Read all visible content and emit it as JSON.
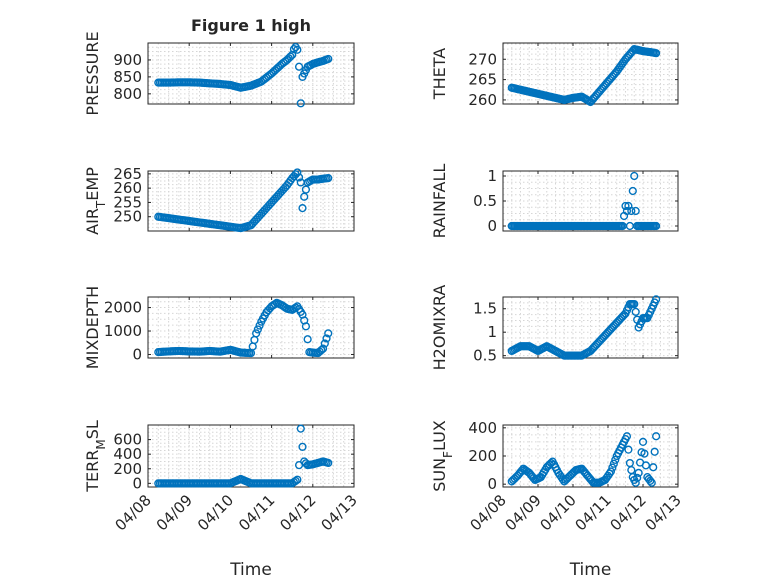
{
  "figure": {
    "title": "Figure 1 high",
    "marker_color": "#0072BD"
  },
  "chart_data": [
    {
      "type": "scatter",
      "title": "Figure 1 high",
      "ylabel": "PRESSURE",
      "xlabel": "",
      "xlim": [
        "04/08",
        "04/13"
      ],
      "ylim": [
        770,
        950
      ],
      "yticks": [
        800,
        850,
        900
      ],
      "xticks": [
        "04/08",
        "04/09",
        "04/10",
        "04/11",
        "04/12",
        "04/13"
      ],
      "grid": true,
      "x": [
        "04/08 06:00",
        "04/08 12:00",
        "04/08 18:00",
        "04/09 00:00",
        "04/09 06:00",
        "04/09 12:00",
        "04/09 18:00",
        "04/10 00:00",
        "04/10 06:00",
        "04/10 12:00",
        "04/10 18:00",
        "04/11 00:00",
        "04/11 06:00",
        "04/11 09:00",
        "04/11 12:00",
        "04/11 13:00",
        "04/11 14:00",
        "04/11 15:00",
        "04/11 16:00",
        "04/11 17:00",
        "04/11 18:00",
        "04/11 21:00",
        "04/12 00:00",
        "04/12 03:00",
        "04/12 06:00",
        "04/12 09:00"
      ],
      "y": [
        833,
        833,
        834,
        834,
        833,
        831,
        829,
        826,
        818,
        824,
        836,
        860,
        888,
        900,
        915,
        932,
        938,
        930,
        880,
        772,
        850,
        880,
        888,
        893,
        897,
        903
      ]
    },
    {
      "type": "scatter",
      "title": "",
      "ylabel": "THETA",
      "xlabel": "",
      "xlim": [
        "04/08",
        "04/13"
      ],
      "ylim": [
        259,
        274
      ],
      "yticks": [
        260,
        265,
        270
      ],
      "xticks": [
        "04/08",
        "04/09",
        "04/10",
        "04/11",
        "04/12",
        "04/13"
      ],
      "grid": true,
      "x": [
        "04/08 06:00",
        "04/08 12:00",
        "04/08 18:00",
        "04/09 00:00",
        "04/09 06:00",
        "04/09 12:00",
        "04/09 18:00",
        "04/10 00:00",
        "04/10 06:00",
        "04/10 12:00",
        "04/10 18:00",
        "04/11 00:00",
        "04/11 06:00",
        "04/11 12:00",
        "04/11 18:00",
        "04/12 00:00",
        "04/12 06:00",
        "04/12 09:00"
      ],
      "y": [
        263,
        262.5,
        262,
        261.5,
        261,
        260.5,
        260,
        260.5,
        260.8,
        259.5,
        262,
        264.5,
        267,
        270,
        272.5,
        272,
        271.7,
        271.5
      ]
    },
    {
      "type": "scatter",
      "title": "",
      "ylabel": "AIR_TEMP",
      "xlabel": "",
      "xlim": [
        "04/08",
        "04/13"
      ],
      "ylim": [
        245,
        266
      ],
      "yticks": [
        250,
        255,
        260,
        265
      ],
      "xticks": [
        "04/08",
        "04/09",
        "04/10",
        "04/11",
        "04/12",
        "04/13"
      ],
      "grid": true,
      "x": [
        "04/08 06:00",
        "04/08 12:00",
        "04/08 18:00",
        "04/09 00:00",
        "04/09 06:00",
        "04/09 12:00",
        "04/09 18:00",
        "04/10 00:00",
        "04/10 06:00",
        "04/10 12:00",
        "04/10 18:00",
        "04/11 00:00",
        "04/11 06:00",
        "04/11 09:00",
        "04/11 12:00",
        "04/11 15:00",
        "04/11 17:00",
        "04/11 18:00",
        "04/11 19:00",
        "04/11 21:00",
        "04/12 00:00",
        "04/12 03:00",
        "04/12 06:00",
        "04/12 09:00"
      ],
      "y": [
        250,
        249.5,
        249,
        248.5,
        248,
        247.5,
        247,
        246.5,
        246,
        247,
        251,
        255,
        259,
        261,
        263.5,
        265.5,
        262,
        253,
        257,
        262,
        263,
        263,
        263.3,
        263.5
      ]
    },
    {
      "type": "scatter",
      "title": "",
      "ylabel": "RAINFALL",
      "xlabel": "",
      "xlim": [
        "04/08",
        "04/13"
      ],
      "ylim": [
        -0.1,
        1.1
      ],
      "yticks": [
        0,
        0.5,
        1
      ],
      "xticks": [
        "04/08",
        "04/09",
        "04/10",
        "04/11",
        "04/12",
        "04/13"
      ],
      "grid": true,
      "x": [
        "04/08 06:00",
        "04/08 12:00",
        "04/08 18:00",
        "04/09 00:00",
        "04/09 06:00",
        "04/09 12:00",
        "04/09 18:00",
        "04/10 00:00",
        "04/10 06:00",
        "04/10 12:00",
        "04/10 18:00",
        "04/11 00:00",
        "04/11 06:00",
        "04/11 10:00",
        "04/11 11:00",
        "04/11 12:00",
        "04/11 13:00",
        "04/11 14:00",
        "04/11 15:00",
        "04/11 16:00",
        "04/11 17:00",
        "04/11 18:00",
        "04/11 19:00",
        "04/11 20:00",
        "04/12 00:00",
        "04/12 06:00",
        "04/12 09:00"
      ],
      "y": [
        0,
        0,
        0,
        0,
        0,
        0,
        0,
        0,
        0,
        0,
        0,
        0,
        0,
        0,
        0.2,
        0.4,
        0.3,
        0.4,
        0,
        0.3,
        0.7,
        1.0,
        0.3,
        0,
        0,
        0,
        0
      ]
    },
    {
      "type": "scatter",
      "title": "",
      "ylabel": "MIXDEPTH",
      "xlabel": "",
      "xlim": [
        "04/08",
        "04/13"
      ],
      "ylim": [
        -150,
        2450
      ],
      "yticks": [
        0,
        1000,
        2000
      ],
      "xticks": [
        "04/08",
        "04/09",
        "04/10",
        "04/11",
        "04/12",
        "04/13"
      ],
      "grid": true,
      "x": [
        "04/08 06:00",
        "04/08 12:00",
        "04/08 18:00",
        "04/09 00:00",
        "04/09 06:00",
        "04/09 12:00",
        "04/09 18:00",
        "04/10 00:00",
        "04/10 06:00",
        "04/10 12:00",
        "04/10 15:00",
        "04/10 18:00",
        "04/10 21:00",
        "04/11 00:00",
        "04/11 03:00",
        "04/11 06:00",
        "04/11 09:00",
        "04/11 12:00",
        "04/11 15:00",
        "04/11 18:00",
        "04/11 20:00",
        "04/11 22:00",
        "04/12 00:00",
        "04/12 03:00",
        "04/12 06:00",
        "04/12 09:00"
      ],
      "y": [
        100,
        130,
        150,
        130,
        120,
        150,
        120,
        200,
        80,
        60,
        900,
        1400,
        1800,
        2050,
        2200,
        2100,
        1950,
        1900,
        2050,
        1700,
        1200,
        100,
        80,
        60,
        250,
        900
      ]
    },
    {
      "type": "scatter",
      "title": "",
      "ylabel": "H2OMIXRA",
      "xlabel": "",
      "xlim": [
        "04/08",
        "04/13"
      ],
      "ylim": [
        0.45,
        1.75
      ],
      "yticks": [
        0.5,
        1,
        1.5
      ],
      "xticks": [
        "04/08",
        "04/09",
        "04/10",
        "04/11",
        "04/12",
        "04/13"
      ],
      "grid": true,
      "x": [
        "04/08 06:00",
        "04/08 12:00",
        "04/08 18:00",
        "04/09 00:00",
        "04/09 06:00",
        "04/09 12:00",
        "04/09 18:00",
        "04/10 00:00",
        "04/10 06:00",
        "04/10 12:00",
        "04/10 18:00",
        "04/11 00:00",
        "04/11 06:00",
        "04/11 12:00",
        "04/11 15:00",
        "04/11 18:00",
        "04/11 21:00",
        "04/12 00:00",
        "04/12 03:00",
        "04/12 06:00",
        "04/12 09:00"
      ],
      "y": [
        0.6,
        0.7,
        0.7,
        0.6,
        0.7,
        0.6,
        0.5,
        0.5,
        0.5,
        0.6,
        0.8,
        1.0,
        1.2,
        1.4,
        1.6,
        1.6,
        1.1,
        1.3,
        1.3,
        1.5,
        1.7
      ]
    },
    {
      "type": "scatter",
      "title": "",
      "ylabel": "TERR_MSL",
      "xlabel": "Time",
      "xlim": [
        "04/08",
        "04/13"
      ],
      "ylim": [
        -50,
        800
      ],
      "yticks": [
        0,
        200,
        400,
        600
      ],
      "xticks": [
        "04/08",
        "04/09",
        "04/10",
        "04/11",
        "04/12",
        "04/13"
      ],
      "grid": true,
      "x": [
        "04/08 06:00",
        "04/08 12:00",
        "04/08 18:00",
        "04/09 00:00",
        "04/09 06:00",
        "04/09 12:00",
        "04/09 18:00",
        "04/10 00:00",
        "04/10 06:00",
        "04/10 12:00",
        "04/10 18:00",
        "04/11 00:00",
        "04/11 06:00",
        "04/11 12:00",
        "04/11 15:00",
        "04/11 16:00",
        "04/11 17:00",
        "04/11 18:00",
        "04/11 19:00",
        "04/11 21:00",
        "04/12 00:00",
        "04/12 03:00",
        "04/12 06:00",
        "04/12 09:00"
      ],
      "y": [
        0,
        0,
        0,
        0,
        0,
        0,
        0,
        0,
        60,
        0,
        0,
        0,
        0,
        0,
        50,
        250,
        750,
        500,
        300,
        250,
        260,
        280,
        300,
        280
      ]
    },
    {
      "type": "scatter",
      "title": "",
      "ylabel": "SUN_FLUX",
      "xlabel": "Time",
      "xlim": [
        "04/08",
        "04/13"
      ],
      "ylim": [
        -20,
        420
      ],
      "yticks": [
        0,
        200,
        400
      ],
      "xticks": [
        "04/08",
        "04/09",
        "04/10",
        "04/11",
        "04/12",
        "04/13"
      ],
      "grid": true,
      "x": [
        "04/08 06:00",
        "04/08 10:00",
        "04/08 14:00",
        "04/08 18:00",
        "04/08 22:00",
        "04/09 02:00",
        "04/09 06:00",
        "04/09 10:00",
        "04/09 14:00",
        "04/09 18:00",
        "04/09 22:00",
        "04/10 02:00",
        "04/10 06:00",
        "04/10 10:00",
        "04/10 14:00",
        "04/10 18:00",
        "04/10 22:00",
        "04/11 02:00",
        "04/11 06:00",
        "04/11 09:00",
        "04/11 11:00",
        "04/11 13:00",
        "04/11 15:00",
        "04/11 17:00",
        "04/11 19:00",
        "04/11 21:00",
        "04/12 00:00",
        "04/12 03:00",
        "04/12 06:00",
        "04/12 09:00"
      ],
      "y": [
        20,
        60,
        110,
        80,
        30,
        50,
        120,
        160,
        80,
        20,
        60,
        100,
        110,
        60,
        10,
        10,
        30,
        90,
        200,
        260,
        300,
        340,
        150,
        50,
        10,
        80,
        300,
        50,
        10,
        340
      ]
    }
  ]
}
